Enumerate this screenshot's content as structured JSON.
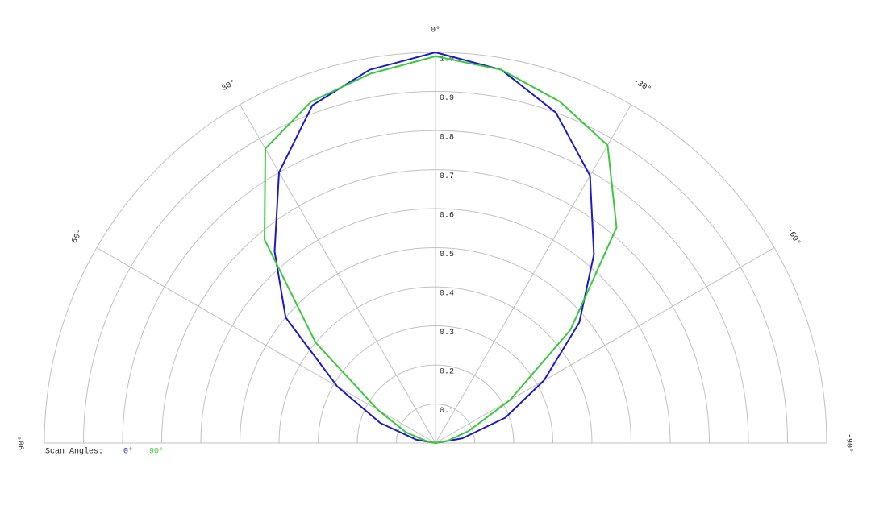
{
  "chart_data": {
    "type": "polar",
    "theta": [
      90,
      80,
      70,
      60,
      50,
      40,
      30,
      20,
      10,
      0,
      -10,
      -20,
      -30,
      -40,
      -50,
      -60,
      -70,
      -80,
      -90
    ],
    "series": [
      {
        "name": "0°",
        "color": "#1a1acc",
        "values": [
          0,
          0.05,
          0.15,
          0.29,
          0.5,
          0.64,
          0.8,
          0.92,
          0.97,
          1.0,
          0.97,
          0.9,
          0.79,
          0.63,
          0.48,
          0.32,
          0.19,
          0.07,
          0
        ]
      },
      {
        "name": "90°",
        "color": "#3cc83c",
        "values": [
          0,
          0.02,
          0.08,
          0.17,
          0.4,
          0.68,
          0.87,
          0.93,
          0.96,
          0.99,
          0.97,
          0.93,
          0.88,
          0.72,
          0.45,
          0.22,
          0.09,
          0.03,
          0
        ]
      }
    ],
    "rlim": [
      0,
      1
    ],
    "rticks": [
      0.1,
      0.2,
      0.3,
      0.4,
      0.5,
      0.6,
      0.7,
      0.8,
      0.9,
      {
        "value": 1,
        "label": "1.0"
      }
    ],
    "thetaticks": [
      {
        "value": 90,
        "label": "90°"
      },
      {
        "value": 60,
        "label": "60°"
      },
      {
        "value": 30,
        "label": "30°"
      },
      {
        "value": 0,
        "label": "0°"
      },
      {
        "value": -30,
        "label": "-30°"
      },
      {
        "value": -60,
        "label": "-60°"
      },
      {
        "value": -90,
        "label": "-90°"
      }
    ],
    "legend_title": "Scan Angles:",
    "grid": true
  }
}
